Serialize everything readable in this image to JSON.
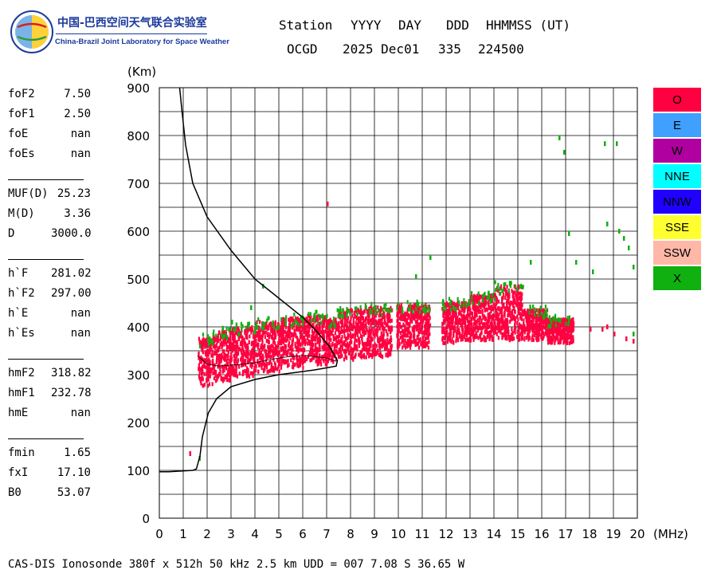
{
  "logo": {
    "name_cn": "中国-巴西空间天气联合实验室",
    "name_en": "China-Brazil Joint Laboratory for Space Weather"
  },
  "header": {
    "row1": [
      "Station",
      "YYYY",
      "DAY",
      "DDD",
      "HHMMSS (UT)"
    ],
    "row2": [
      "OCGD",
      "2025 Dec01",
      "335",
      "224500"
    ]
  },
  "parameters": {
    "group1": [
      {
        "label": "foF2",
        "value": "7.50"
      },
      {
        "label": "foF1",
        "value": "2.50"
      },
      {
        "label": "foE",
        "value": "nan"
      },
      {
        "label": "foEs",
        "value": "nan"
      }
    ],
    "group2": [
      {
        "label": "MUF(D)",
        "value": "25.23"
      },
      {
        "label": "M(D)",
        "value": "3.36"
      },
      {
        "label": "D",
        "value": "3000.0"
      }
    ],
    "group3": [
      {
        "label": "h`F",
        "value": "281.02"
      },
      {
        "label": "h`F2",
        "value": "297.00"
      },
      {
        "label": "h`E",
        "value": "nan"
      },
      {
        "label": "h`Es",
        "value": "nan"
      }
    ],
    "group4": [
      {
        "label": "hmF2",
        "value": "318.82"
      },
      {
        "label": "hmF1",
        "value": "232.78"
      },
      {
        "label": "hmE",
        "value": "nan"
      }
    ],
    "group5": [
      {
        "label": "fmin",
        "value": "1.65"
      },
      {
        "label": "fxI",
        "value": "17.10"
      },
      {
        "label": "B0",
        "value": "53.07"
      }
    ]
  },
  "legend": [
    {
      "label": "O",
      "color": "#ff0040"
    },
    {
      "label": "E",
      "color": "#40a0ff"
    },
    {
      "label": "W",
      "color": "#b000a0"
    },
    {
      "label": "NNE",
      "color": "#00ffff"
    },
    {
      "label": "NNW",
      "color": "#2000ff"
    },
    {
      "label": "SSE",
      "color": "#ffff30"
    },
    {
      "label": "SSW",
      "color": "#ffb8a8"
    },
    {
      "label": "X",
      "color": "#10b010"
    }
  ],
  "footer": "CAS-DIS Ionosonde 380f x 512h 50 kHz 2.5 km UDD = 007 7.08 S 36.65 W",
  "chart_data": {
    "type": "scatter",
    "xlabel": "(MHz)",
    "ylabel": "(Km)",
    "xlim": [
      0,
      20
    ],
    "ylim": [
      0,
      900
    ],
    "x_ticks": [
      0,
      1,
      2,
      3,
      4,
      5,
      6,
      7,
      8,
      9,
      10,
      11,
      12,
      13,
      14,
      15,
      16,
      17,
      18,
      19,
      20
    ],
    "y_ticks": [
      0,
      100,
      200,
      300,
      400,
      500,
      600,
      700,
      800,
      900
    ],
    "grid": true,
    "o_trace_bands": [
      {
        "f0": 1.6,
        "f1": 2.2,
        "h_low": 280,
        "h_high": 380
      },
      {
        "f0": 2.2,
        "f1": 3.0,
        "h_low": 290,
        "h_high": 395
      },
      {
        "f0": 3.0,
        "f1": 4.0,
        "h_low": 300,
        "h_high": 405
      },
      {
        "f0": 4.0,
        "f1": 5.0,
        "h_low": 310,
        "h_high": 415
      },
      {
        "f0": 5.0,
        "f1": 6.0,
        "h_low": 318,
        "h_high": 422
      },
      {
        "f0": 6.0,
        "f1": 7.0,
        "h_low": 325,
        "h_high": 428
      },
      {
        "f0": 7.0,
        "f1": 7.4,
        "h_low": 330,
        "h_high": 420
      },
      {
        "f0": 7.4,
        "f1": 8.5,
        "h_low": 335,
        "h_high": 440
      },
      {
        "f0": 8.5,
        "f1": 9.7,
        "h_low": 340,
        "h_high": 445
      },
      {
        "f0": 9.9,
        "f1": 11.3,
        "h_low": 360,
        "h_high": 450
      },
      {
        "f0": 11.8,
        "f1": 13.0,
        "h_low": 370,
        "h_high": 455
      },
      {
        "f0": 13.0,
        "f1": 14.0,
        "h_low": 375,
        "h_high": 470
      },
      {
        "f0": 14.0,
        "f1": 15.2,
        "h_low": 375,
        "h_high": 490
      },
      {
        "f0": 15.2,
        "f1": 16.2,
        "h_low": 375,
        "h_high": 440
      },
      {
        "f0": 16.2,
        "f1": 17.3,
        "h_low": 370,
        "h_high": 420
      }
    ],
    "o_isolated": [
      [
        7.0,
        662
      ],
      [
        1.25,
        140
      ],
      [
        18.0,
        400
      ],
      [
        18.5,
        400
      ],
      [
        18.7,
        405
      ],
      [
        19.0,
        390
      ],
      [
        19.5,
        380
      ],
      [
        19.8,
        375
      ]
    ],
    "x_isolated": [
      [
        16.7,
        800
      ],
      [
        16.9,
        770
      ],
      [
        18.6,
        788
      ],
      [
        19.1,
        788
      ],
      [
        19.2,
        605
      ],
      [
        19.4,
        590
      ],
      [
        19.6,
        570
      ],
      [
        19.8,
        530
      ],
      [
        18.7,
        620
      ],
      [
        17.1,
        600
      ],
      [
        19.8,
        390
      ],
      [
        11.3,
        550
      ],
      [
        3.0,
        415
      ],
      [
        3.8,
        445
      ],
      [
        4.3,
        490
      ],
      [
        1.65,
        130
      ],
      [
        10.7,
        510
      ],
      [
        15.5,
        540
      ],
      [
        17.4,
        540
      ],
      [
        18.1,
        520
      ]
    ],
    "profile_curve": [
      [
        0.85,
        900
      ],
      [
        0.95,
        850
      ],
      [
        1.1,
        780
      ],
      [
        1.4,
        700
      ],
      [
        2.0,
        630
      ],
      [
        3.0,
        560
      ],
      [
        4.0,
        500
      ],
      [
        5.0,
        460
      ],
      [
        6.0,
        420
      ],
      [
        6.6,
        390
      ],
      [
        7.1,
        360
      ],
      [
        7.45,
        330
      ],
      [
        7.4,
        318
      ],
      [
        6.5,
        310
      ],
      [
        5.0,
        300
      ],
      [
        4.0,
        290
      ],
      [
        3.0,
        275
      ],
      [
        2.4,
        250
      ],
      [
        2.05,
        220
      ],
      [
        1.8,
        170
      ],
      [
        1.7,
        130
      ],
      [
        1.6,
        112
      ],
      [
        1.55,
        103
      ],
      [
        1.4,
        100
      ],
      [
        0.4,
        97
      ],
      [
        0.0,
        97
      ]
    ],
    "lower_trace": [
      [
        1.6,
        340
      ],
      [
        2.0,
        322
      ],
      [
        2.5,
        318
      ],
      [
        3.0,
        320
      ],
      [
        3.5,
        322
      ],
      [
        4.0,
        325
      ],
      [
        4.5,
        330
      ],
      [
        5.0,
        335
      ],
      [
        5.5,
        338
      ],
      [
        6.0,
        340
      ],
      [
        6.5,
        338
      ],
      [
        7.0,
        335
      ],
      [
        7.4,
        328
      ]
    ]
  }
}
